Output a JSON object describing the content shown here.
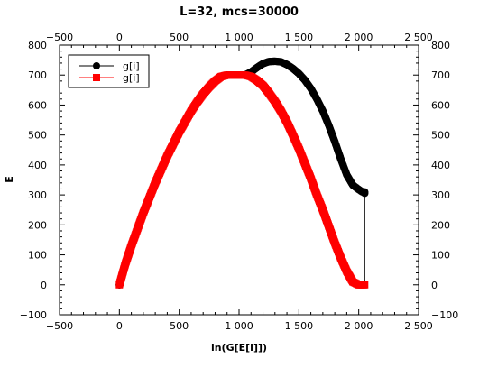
{
  "chart_data": {
    "type": "scatter",
    "title": "L=32, mcs=30000",
    "xlabel": "ln(G[E[i]])",
    "ylabel": "E",
    "xlim": [
      -500,
      2500
    ],
    "ylim": [
      -100,
      800
    ],
    "x_ticks": [
      -500,
      0,
      500,
      1000,
      1500,
      2000,
      2500
    ],
    "x_tick_labels": [
      "−500",
      "0",
      "500",
      "1 000",
      "1 500",
      "2 000",
      "2 500"
    ],
    "y_ticks": [
      -100,
      0,
      100,
      200,
      300,
      400,
      500,
      600,
      700,
      800
    ],
    "y_tick_labels": [
      "−100",
      "0",
      "100",
      "200",
      "300",
      "400",
      "500",
      "600",
      "700",
      "800"
    ],
    "mirror_axes": true,
    "grid": false,
    "legend": "top-left",
    "series": [
      {
        "name": "g[i]",
        "marker": "circle",
        "color": "#000000",
        "x": [
          0,
          50,
          100,
          150,
          200,
          250,
          300,
          350,
          400,
          450,
          500,
          550,
          600,
          650,
          700,
          750,
          800,
          850,
          900,
          950,
          1000,
          1050,
          1100,
          1150,
          1200,
          1250,
          1300,
          1350,
          1400,
          1450,
          1500,
          1550,
          1600,
          1650,
          1700,
          1750,
          1800,
          1850,
          1900,
          1950,
          2000,
          2030,
          2050,
          2050
        ],
        "y": [
          0,
          70,
          130,
          185,
          240,
          290,
          340,
          385,
          430,
          470,
          510,
          545,
          580,
          610,
          637,
          660,
          680,
          695,
          700,
          700,
          700,
          700,
          710,
          725,
          738,
          745,
          746,
          744,
          735,
          722,
          705,
          683,
          655,
          620,
          580,
          532,
          478,
          420,
          367,
          333,
          318,
          310,
          310,
          0
        ]
      },
      {
        "name": "g[i]",
        "marker": "square",
        "color": "#ff0000",
        "x": [
          0,
          50,
          100,
          150,
          200,
          250,
          300,
          350,
          400,
          450,
          500,
          550,
          600,
          650,
          700,
          750,
          800,
          850,
          900,
          950,
          1000,
          1050,
          1100,
          1150,
          1200,
          1250,
          1300,
          1350,
          1400,
          1450,
          1500,
          1550,
          1600,
          1650,
          1700,
          1750,
          1800,
          1850,
          1900,
          1950,
          2000,
          2050
        ],
        "y": [
          0,
          70,
          130,
          185,
          240,
          290,
          340,
          385,
          430,
          470,
          510,
          545,
          580,
          610,
          637,
          660,
          680,
          695,
          700,
          700,
          700,
          700,
          695,
          682,
          665,
          640,
          612,
          580,
          543,
          500,
          455,
          405,
          355,
          300,
          250,
          195,
          140,
          90,
          45,
          10,
          0,
          0
        ]
      }
    ]
  }
}
